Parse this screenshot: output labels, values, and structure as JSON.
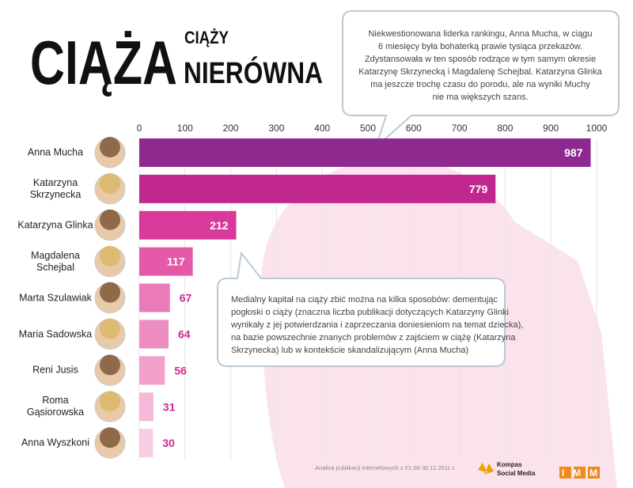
{
  "chart_data": {
    "type": "hbar",
    "title": "CIĄŻA",
    "title_small": "CIĄŻY",
    "title_second": "NIERÓWNA",
    "categories": [
      "Anna Mucha",
      "Katarzyna Skrzynecka",
      "Katarzyna Glinka",
      "Magdalena Schejbal",
      "Marta Szulawiak",
      "Maria Sadowska",
      "Reni Jusis",
      "Roma Gąsiorowska",
      "Anna Wyszkoni"
    ],
    "values": [
      987,
      779,
      212,
      117,
      67,
      64,
      56,
      31,
      30
    ],
    "colors": [
      "#8e2a8f",
      "#c0288e",
      "#d9399a",
      "#e45aa8",
      "#ea7ab8",
      "#ee8dc2",
      "#f19fcb",
      "#f5b8d8",
      "#f8cce3"
    ],
    "xlim": [
      0,
      1000
    ],
    "xticks": [
      0,
      100,
      200,
      300,
      400,
      500,
      600,
      700,
      800,
      900,
      1000
    ],
    "grid": true,
    "annotation_top": [
      "Niekwestionowana liderka rankingu, Anna Mucha, w ciągu",
      "6 miesięcy była bohaterką prawie tysiąca przekazów.",
      "Zdystansowała w ten sposób rodzące w tym samym okresie",
      "Katarzynę Skrzynecką i Magdalenę Schejbal.  Katarzyna Glinka",
      "ma jeszcze trochę czasu do porodu, ale na wyniki Muchy",
      "nie ma większych szans."
    ],
    "annotation_middle": [
      "Medialny kapitał na ciąży zbić można na kilka sposobów: dementując",
      "pogłoski o ciąży (znaczna liczba publikacji dotyczących Katarzyny Glinki",
      "wynikały z jej potwierdzania i zaprzeczania doniesieniom na temat dziecka),",
      "na bazie powszechnie znanych problemów z zajściem w ciążę (Katarzyna",
      "Skrzynecka) lub w kontekście skandalizującym (Anna Mucha)"
    ],
    "source": "Analiza publikacji internetowych z 01.06-30.11.2011 r.",
    "logo_kompas": [
      "Kompas",
      "Social Media"
    ],
    "logo_imm": "IMM"
  }
}
